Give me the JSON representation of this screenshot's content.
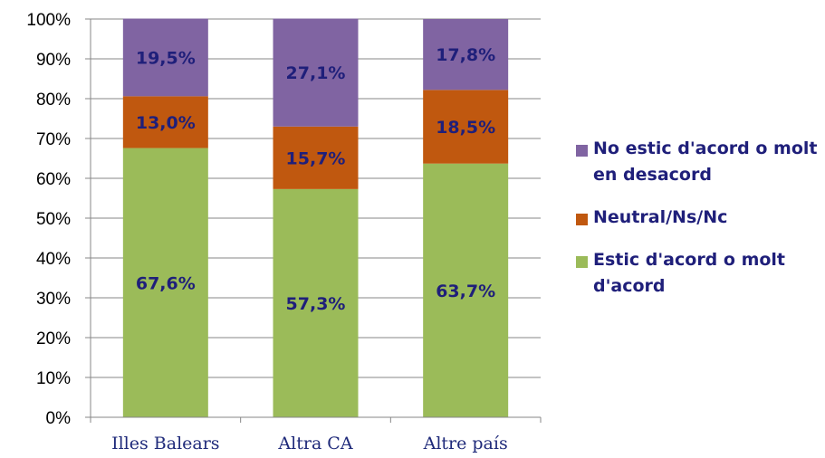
{
  "chart_data": {
    "type": "bar",
    "stacked": true,
    "percent": true,
    "categories": [
      "Illes Balears",
      "Altra CA",
      "Altre país"
    ],
    "series": [
      {
        "name": "Estic d'acord o molt d'acord",
        "values": [
          67.6,
          57.3,
          63.7
        ],
        "labels": [
          "67,6%",
          "57,3%",
          "63,7%"
        ],
        "color": "#9bbb59"
      },
      {
        "name": "Neutral/Ns/Nc",
        "values": [
          13.0,
          15.7,
          18.5
        ],
        "labels": [
          "13,0%",
          "15,7%",
          "18,5%"
        ],
        "color": "#c0580f"
      },
      {
        "name": "No estic d'acord o molt en desacord",
        "values": [
          19.5,
          27.1,
          17.8
        ],
        "labels": [
          "19,5%",
          "27,1%",
          "17,8%"
        ],
        "color": "#8064a2"
      }
    ],
    "yticks": [
      "0%",
      "10%",
      "20%",
      "30%",
      "40%",
      "50%",
      "60%",
      "70%",
      "80%",
      "90%",
      "100%"
    ],
    "ylim": [
      0,
      100
    ],
    "grid": true,
    "legend_position": "right",
    "label_color": "#1f1f7a",
    "xtick_color": "#1f2a7a",
    "gridline_color": "#878787"
  },
  "legend": [
    {
      "label": "No estic d'acord o molt en desacord",
      "color": "#8064a2"
    },
    {
      "label": "Neutral/Ns/Nc",
      "color": "#c0580f"
    },
    {
      "label": "Estic d'acord o molt d'acord",
      "color": "#9bbb59"
    }
  ]
}
